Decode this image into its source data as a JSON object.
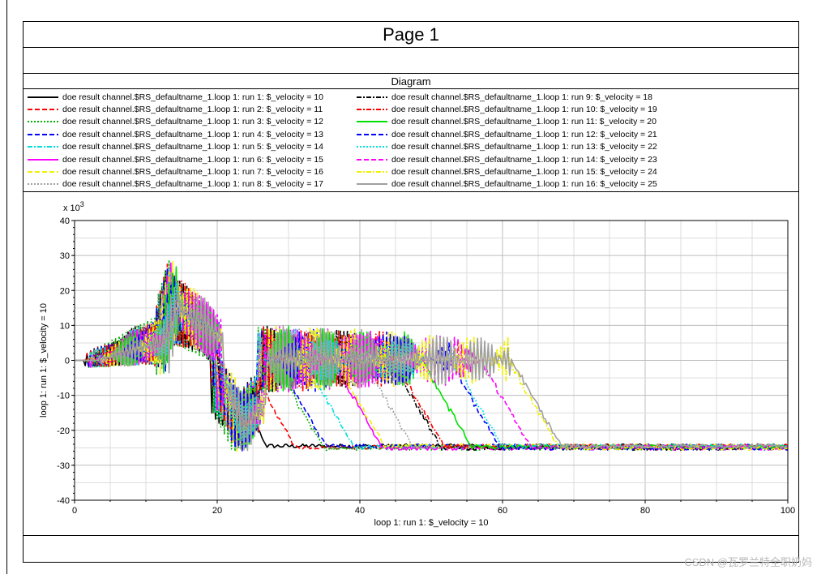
{
  "page": {
    "title": "Page 1",
    "diagram_title": "Diagram",
    "watermark": "CSDN @瓦罗兰特全职奶妈"
  },
  "chart_data": {
    "type": "line",
    "xlabel": "loop 1: run 1: $_velocity = 10",
    "ylabel": "loop 1: run 1: $_velocity = 10",
    "y_multiplier_label": "x 10",
    "y_multiplier_exp": "3",
    "xlim": [
      0,
      100
    ],
    "ylim": [
      -40,
      40
    ],
    "x_ticks": [
      0,
      20,
      40,
      60,
      80,
      100
    ],
    "y_ticks": [
      40,
      30,
      20,
      10,
      0,
      -10,
      -20,
      -30,
      -40
    ],
    "grid": true,
    "legend_placement": "top, above plot, two columns",
    "series": [
      {
        "name": "doe result channel.$RS_defaultname_1.loop 1: run 1: $_velocity = 10",
        "color": "#000000",
        "dash": "solid",
        "velocity": 10
      },
      {
        "name": "doe result channel.$RS_defaultname_1.loop 1: run 2: $_velocity = 11",
        "color": "#ff0000",
        "dash": "dashed",
        "velocity": 11
      },
      {
        "name": "doe result channel.$RS_defaultname_1.loop 1: run 3: $_velocity = 12",
        "color": "#00b000",
        "dash": "dotted",
        "velocity": 12
      },
      {
        "name": "doe result channel.$RS_defaultname_1.loop 1: run 4: $_velocity = 13",
        "color": "#0000ff",
        "dash": "dashed",
        "velocity": 13
      },
      {
        "name": "doe result channel.$RS_defaultname_1.loop 1: run 5: $_velocity = 14",
        "color": "#00e0e0",
        "dash": "dashdot",
        "velocity": 14
      },
      {
        "name": "doe result channel.$RS_defaultname_1.loop 1: run 6: $_velocity = 15",
        "color": "#ff00ff",
        "dash": "solid",
        "velocity": 15
      },
      {
        "name": "doe result channel.$RS_defaultname_1.loop 1: run 7: $_velocity = 16",
        "color": "#f0f000",
        "dash": "dashed",
        "velocity": 16
      },
      {
        "name": "doe result channel.$RS_defaultname_1.loop 1: run 8: $_velocity = 17",
        "color": "#a0a0a0",
        "dash": "dotted",
        "velocity": 17
      },
      {
        "name": "doe result channel.$RS_defaultname_1.loop 1: run 9: $_velocity = 18",
        "color": "#000000",
        "dash": "dashdot",
        "velocity": 18
      },
      {
        "name": "doe result channel.$RS_defaultname_1.loop 1: run 10: $_velocity = 19",
        "color": "#ff0000",
        "dash": "dashdot",
        "velocity": 19
      },
      {
        "name": "doe result channel.$RS_defaultname_1.loop 1: run 11: $_velocity = 20",
        "color": "#00e000",
        "dash": "solid",
        "velocity": 20
      },
      {
        "name": "doe result channel.$RS_defaultname_1.loop 1: run 12: $_velocity = 21",
        "color": "#0000ff",
        "dash": "dashed",
        "velocity": 21
      },
      {
        "name": "doe result channel.$RS_defaultname_1.loop 1: run 13: $_velocity = 22",
        "color": "#00e0e0",
        "dash": "dotted",
        "velocity": 22
      },
      {
        "name": "doe result channel.$RS_defaultname_1.loop 1: run 14: $_velocity = 23",
        "color": "#ff00ff",
        "dash": "dashed",
        "velocity": 23
      },
      {
        "name": "doe result channel.$RS_defaultname_1.loop 1: run 15: $_velocity = 24",
        "color": "#f0f000",
        "dash": "dashdot",
        "velocity": 24
      },
      {
        "name": "doe result channel.$RS_defaultname_1.loop 1: run 16: $_velocity = 25",
        "color": "#a0a0a0",
        "dash": "solid",
        "velocity": 25
      }
    ]
  }
}
